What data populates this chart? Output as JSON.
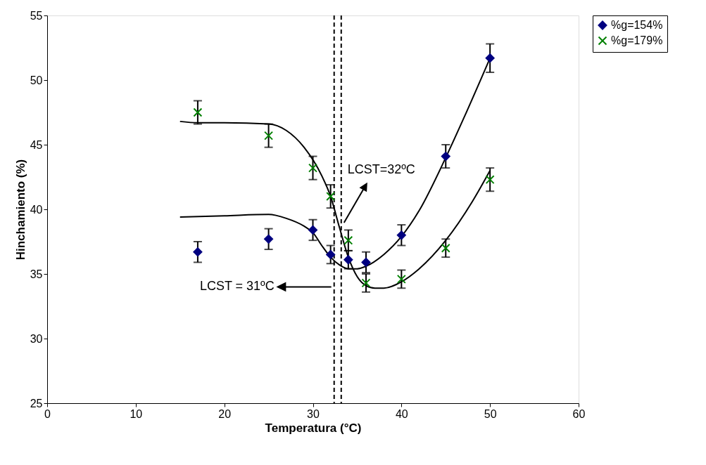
{
  "chart_data": {
    "type": "scatter",
    "xlabel": "Temperatura (°C)",
    "ylabel": "Hinchamiento (%)",
    "xlim": [
      0,
      60
    ],
    "xticks": [
      0,
      10,
      20,
      30,
      40,
      50,
      60
    ],
    "ylim": [
      25,
      55
    ],
    "yticks": [
      25,
      30,
      35,
      40,
      45,
      50,
      55
    ],
    "grid": false,
    "legend": "right",
    "series": [
      {
        "name": "%g=154%",
        "color": "#000080",
        "marker": "diamond",
        "x": [
          17,
          25,
          30,
          32,
          34,
          36,
          40,
          45,
          50
        ],
        "values": [
          36.7,
          37.7,
          38.4,
          36.5,
          36.1,
          35.9,
          38.0,
          44.1,
          51.7
        ],
        "errors": [
          0.8,
          0.8,
          0.8,
          0.7,
          0.7,
          0.8,
          0.8,
          0.9,
          1.1
        ]
      },
      {
        "name": "%g=179%",
        "color": "#008000",
        "marker": "cross",
        "x": [
          17,
          25,
          30,
          32,
          34,
          36,
          40,
          45,
          50
        ],
        "values": [
          47.5,
          45.7,
          43.2,
          41.0,
          37.6,
          34.3,
          34.6,
          37.0,
          42.3
        ],
        "errors": [
          0.9,
          0.9,
          0.9,
          0.9,
          0.8,
          0.7,
          0.7,
          0.7,
          0.9
        ]
      },
      {
        "type": "line",
        "color": "#000000",
        "marker": "none",
        "x": [
          15,
          17,
          20,
          25,
          27,
          29,
          31,
          32,
          33,
          34,
          35,
          36,
          37,
          38,
          40,
          42,
          45,
          48,
          50
        ],
        "values": [
          46.8,
          46.7,
          46.7,
          46.6,
          46.1,
          44.8,
          42.6,
          41.0,
          38.6,
          36.3,
          34.8,
          34.1,
          33.9,
          33.9,
          34.4,
          35.4,
          37.6,
          40.6,
          43.0
        ]
      },
      {
        "type": "line",
        "color": "#000000",
        "marker": "none",
        "x": [
          15,
          20,
          25,
          27,
          29,
          30,
          31,
          32,
          33,
          34,
          35,
          36,
          38,
          40,
          42,
          45,
          47,
          50
        ],
        "values": [
          39.4,
          39.5,
          39.6,
          39.3,
          38.7,
          38.2,
          37.2,
          36.3,
          35.7,
          35.4,
          35.4,
          35.6,
          36.5,
          37.9,
          39.9,
          44.0,
          47.0,
          51.7
        ]
      }
    ],
    "ref_lines": [
      {
        "axis": "x",
        "value": 32.4,
        "color": "#000000",
        "line_style": "dashed"
      },
      {
        "axis": "x",
        "value": 33.2,
        "color": "#000000",
        "line_style": "dashed"
      }
    ],
    "annotations": [
      "LCST = 31ºC",
      "LCST=32ºC"
    ]
  }
}
